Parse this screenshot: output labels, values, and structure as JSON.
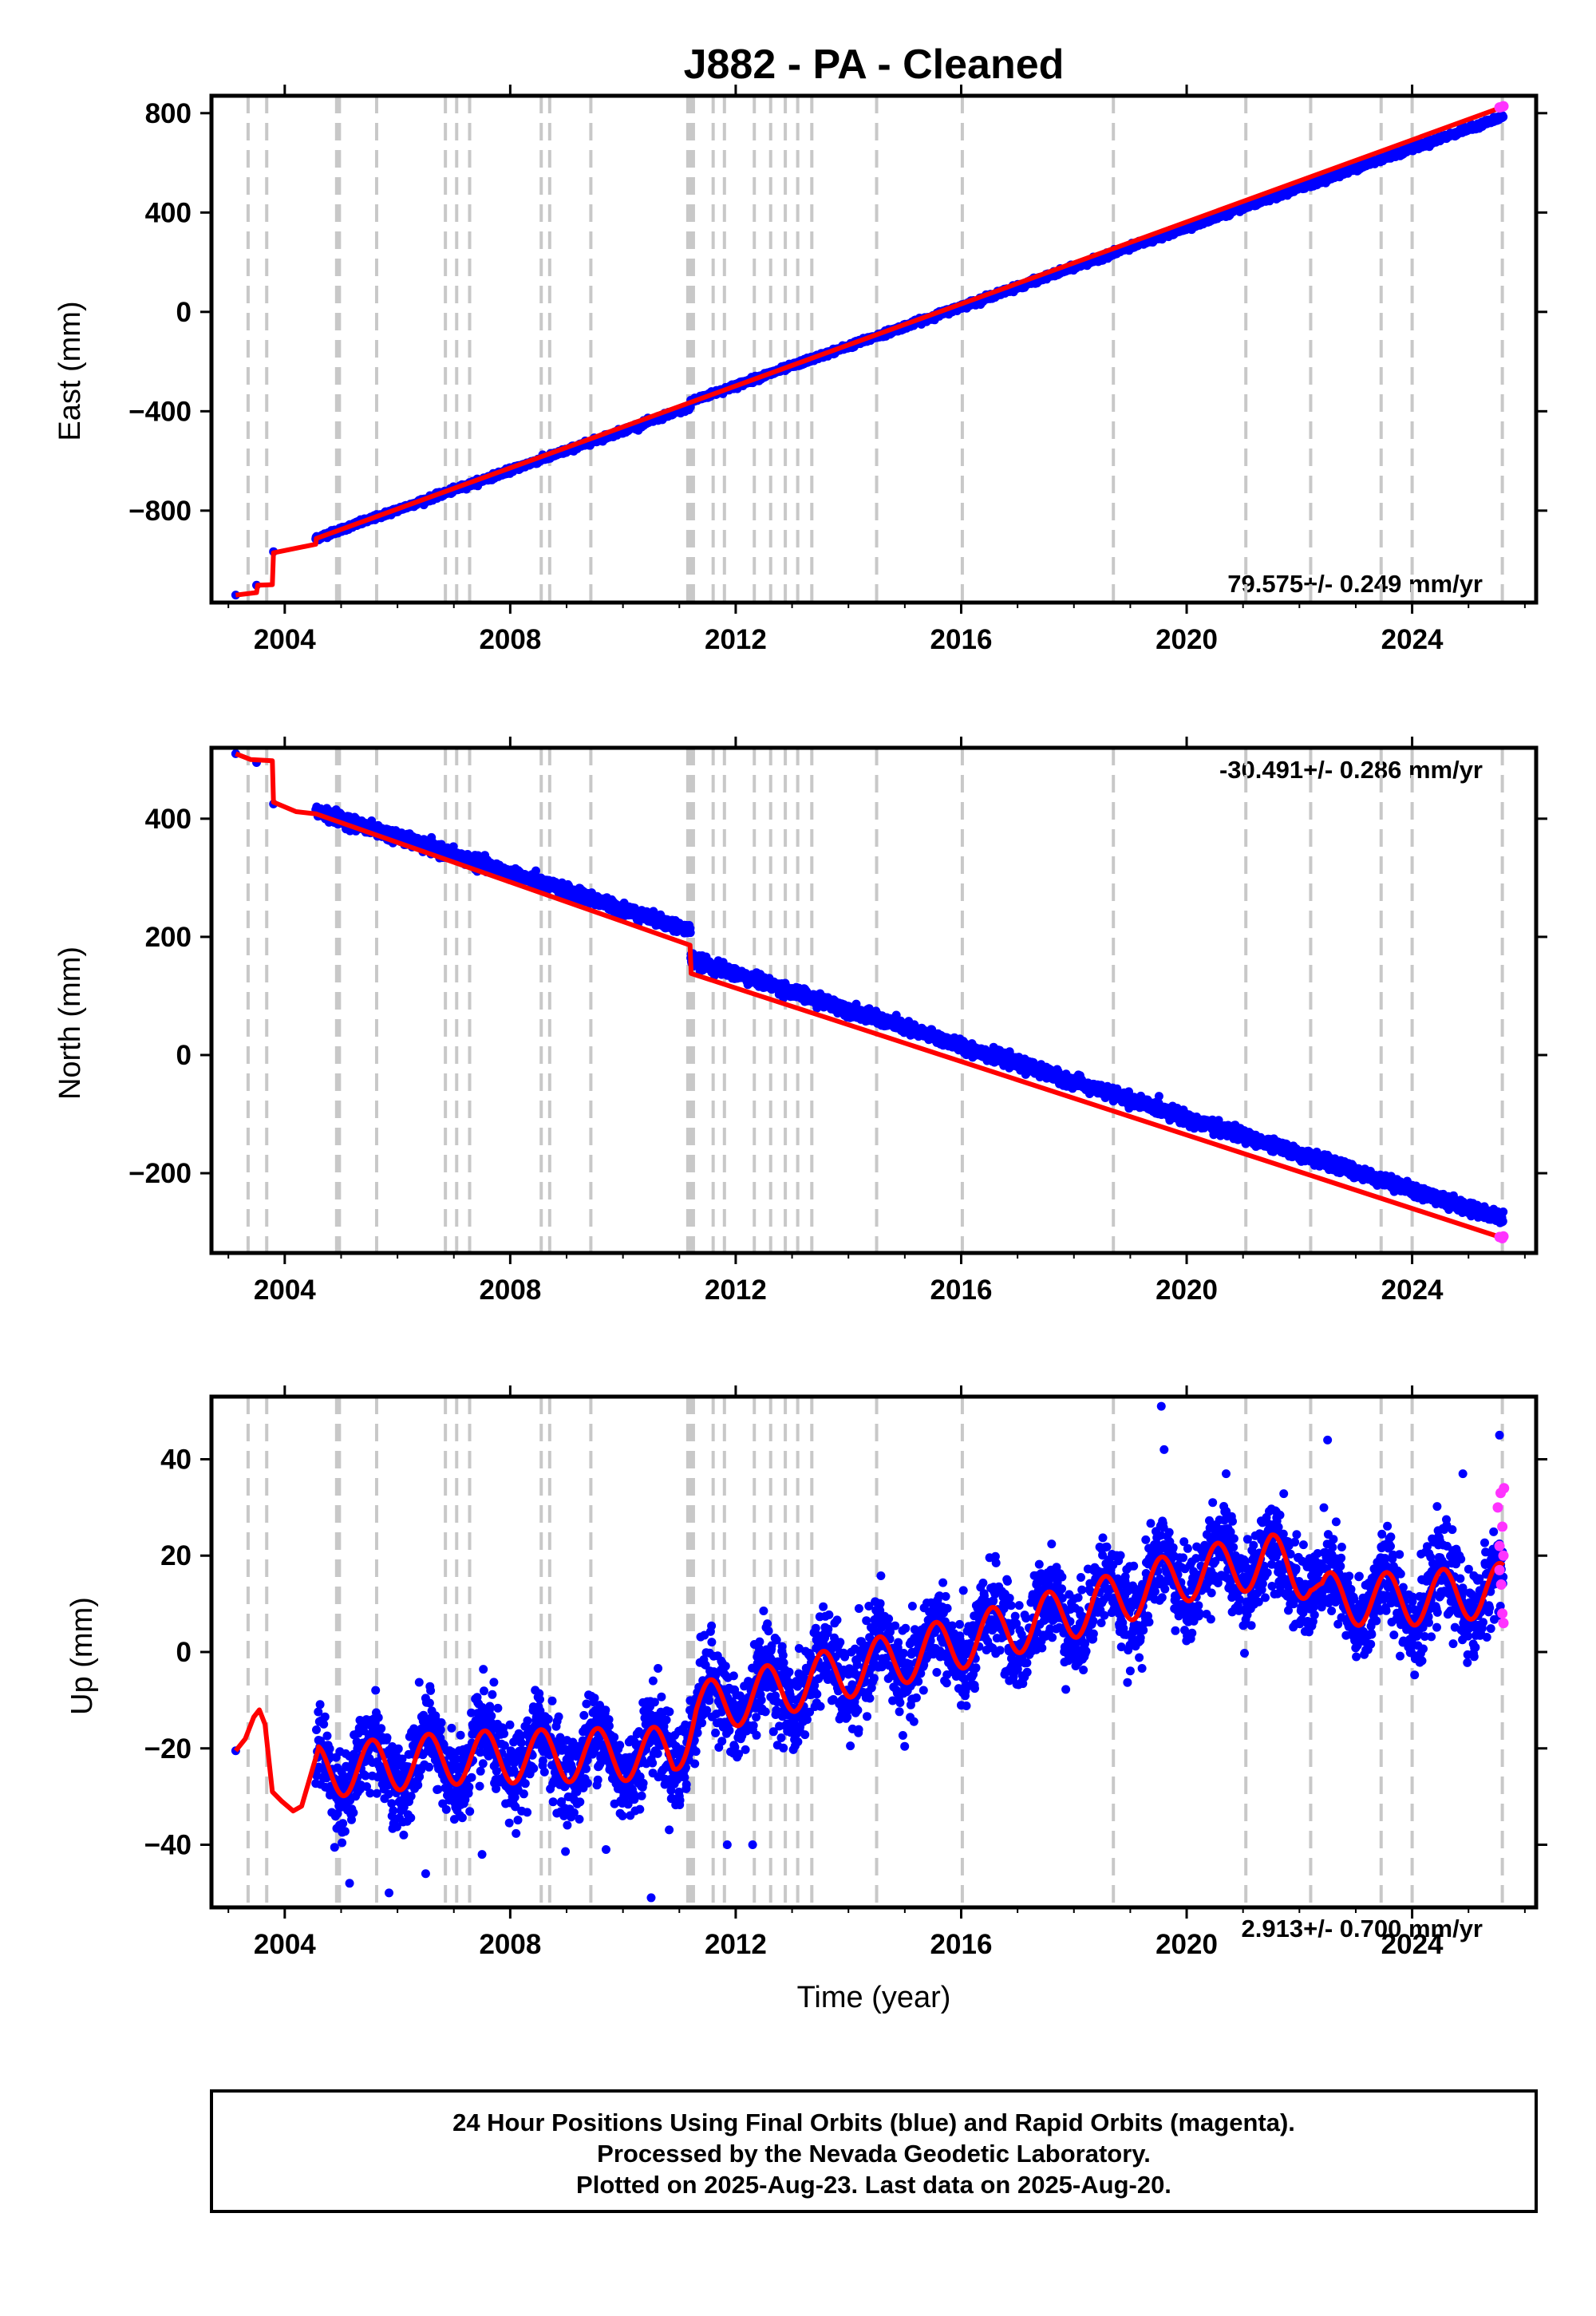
{
  "title": "J882  - PA - Cleaned",
  "colors": {
    "final_points": "#0000ff",
    "rapid_points": "#ff33ff",
    "model_line": "#ff0000",
    "event_lines": "#c8c8c8",
    "frame": "#000000"
  },
  "chart_data": [
    {
      "type": "scatter",
      "component": "east",
      "ylabel": "East (mm)",
      "xlabel": "",
      "xlim": [
        2002.7,
        2026.2
      ],
      "ylim": [
        -1170,
        870
      ],
      "xticks": [
        2004,
        2008,
        2012,
        2016,
        2020,
        2024
      ],
      "yticks": [
        -800,
        -400,
        0,
        400,
        800
      ],
      "rate_label": "79.575+/- 0.249 mm/yr",
      "rate_position": "bottom-right",
      "grid": false,
      "events": [
        2003.35,
        2003.68,
        2004.92,
        2004.97,
        2005.63,
        2006.85,
        2007.05,
        2007.28,
        2008.55,
        2008.7,
        2009.43,
        2011.15,
        2011.2,
        2011.25,
        2011.6,
        2011.8,
        2012.33,
        2012.62,
        2012.88,
        2013.1,
        2013.35,
        2014.5,
        2016.02,
        2018.7,
        2021.05,
        2022.2,
        2023.45,
        2024.0,
        2025.6
      ],
      "early_points": [
        [
          2003.13,
          -1140
        ],
        [
          2003.5,
          -1100
        ],
        [
          2003.8,
          -965
        ]
      ],
      "continuous_start": 2004.55,
      "continuous_end": 2025.62,
      "start_value": -912,
      "end_value": 826,
      "rate": 79.575,
      "steps": [
        [
          2011.2,
          22
        ]
      ],
      "noise": 5,
      "model_line": [
        [
          2003.13,
          -1140
        ],
        [
          2003.5,
          -1130
        ],
        [
          2003.52,
          -1100
        ],
        [
          2003.78,
          -1098
        ],
        [
          2003.8,
          -970
        ],
        [
          2004.55,
          -935
        ],
        [
          2004.56,
          -912
        ],
        [
          2025.62,
          826
        ]
      ],
      "rapid_points": [
        [
          2025.55,
          823
        ],
        [
          2025.6,
          826
        ],
        [
          2025.62,
          828
        ]
      ]
    },
    {
      "type": "scatter",
      "component": "north",
      "ylabel": "North (mm)",
      "xlabel": "",
      "xlim": [
        2002.7,
        2026.2
      ],
      "ylim": [
        -335,
        520
      ],
      "xticks": [
        2004,
        2008,
        2012,
        2016,
        2020,
        2024
      ],
      "yticks": [
        -200,
        0,
        200,
        400
      ],
      "rate_label": "-30.491+/- 0.286 mm/yr",
      "rate_position": "top-right",
      "grid": false,
      "events": [
        2003.35,
        2003.68,
        2004.92,
        2004.97,
        2005.63,
        2006.85,
        2007.05,
        2007.28,
        2008.55,
        2008.7,
        2009.43,
        2011.15,
        2011.2,
        2011.25,
        2011.6,
        2011.8,
        2012.33,
        2012.62,
        2012.88,
        2013.1,
        2013.35,
        2014.5,
        2016.02,
        2018.7,
        2021.05,
        2022.2,
        2023.45,
        2024.0,
        2025.6
      ],
      "early_points": [
        [
          2003.13,
          510
        ],
        [
          2003.5,
          495
        ],
        [
          2003.8,
          425
        ]
      ],
      "continuous_start": 2004.55,
      "continuous_end": 2025.62,
      "start_value": 413,
      "end_value": -313,
      "rate": -30.491,
      "steps": [
        [
          2011.2,
          -48
        ]
      ],
      "noise": 5,
      "model_line": [
        [
          2003.13,
          510
        ],
        [
          2003.4,
          500
        ],
        [
          2003.78,
          498
        ],
        [
          2003.8,
          428
        ],
        [
          2004.2,
          412
        ],
        [
          2004.56,
          408
        ],
        [
          2011.19,
          186
        ],
        [
          2011.21,
          138
        ],
        [
          2025.62,
          -310
        ]
      ],
      "rapid_points": [
        [
          2025.55,
          -308
        ],
        [
          2025.6,
          -310
        ],
        [
          2025.62,
          -307
        ]
      ]
    },
    {
      "type": "scatter",
      "component": "up",
      "ylabel": "Up (mm)",
      "xlabel": "Time (year)",
      "xlim": [
        2002.7,
        2026.2
      ],
      "ylim": [
        -53,
        53
      ],
      "xticks": [
        2004,
        2008,
        2012,
        2016,
        2020,
        2024
      ],
      "yticks": [
        -40,
        -20,
        0,
        20,
        40
      ],
      "rate_label": "2.913+/- 0.700 mm/yr",
      "rate_position": "bottom-right",
      "grid": false,
      "events": [
        2003.35,
        2003.68,
        2004.92,
        2004.97,
        2005.63,
        2006.85,
        2007.05,
        2007.28,
        2008.55,
        2008.7,
        2009.43,
        2011.15,
        2011.2,
        2011.25,
        2011.6,
        2011.8,
        2012.33,
        2012.62,
        2012.88,
        2013.1,
        2013.35,
        2014.5,
        2016.02,
        2018.7,
        2021.05,
        2022.2,
        2023.45,
        2024.0,
        2025.6
      ],
      "early_points": [
        [
          2003.13,
          -20.5
        ]
      ],
      "continuous_start": 2004.55,
      "continuous_end": 2025.62,
      "noise": 4.5,
      "trend_knots": [
        [
          2004.5,
          -25
        ],
        [
          2007.0,
          -22
        ],
        [
          2010.9,
          -21
        ],
        [
          2011.3,
          -12
        ],
        [
          2013.0,
          -7
        ],
        [
          2016.0,
          2
        ],
        [
          2018.5,
          10
        ],
        [
          2020.0,
          16
        ],
        [
          2021.5,
          19
        ],
        [
          2022.2,
          16
        ],
        [
          2022.4,
          11
        ],
        [
          2024.0,
          11
        ],
        [
          2025.62,
          13
        ]
      ],
      "seasonal_amplitude": 5.5,
      "seasonal_peak_phase": 0.55,
      "outliers": [
        [
          2019.55,
          51
        ],
        [
          2010.5,
          -51
        ],
        [
          2005.15,
          -48
        ],
        [
          2005.85,
          -50
        ],
        [
          2011.85,
          -40
        ],
        [
          2012.3,
          -40
        ],
        [
          2006.5,
          -46
        ],
        [
          2019.6,
          42
        ],
        [
          2022.5,
          44
        ],
        [
          2025.55,
          45
        ],
        [
          2007.5,
          -42
        ],
        [
          2009.7,
          -41
        ],
        [
          2020.7,
          37
        ],
        [
          2024.9,
          37
        ]
      ],
      "model_line": [
        [
          2003.13,
          -20.5
        ],
        [
          2003.3,
          -18
        ],
        [
          2003.45,
          -13.5
        ],
        [
          2003.55,
          -12
        ],
        [
          2003.65,
          -15
        ],
        [
          2003.78,
          -29
        ],
        [
          2003.95,
          -31
        ],
        [
          2004.15,
          -33
        ],
        [
          2004.3,
          -32
        ],
        [
          2004.5,
          -24
        ],
        [
          2004.6,
          -20
        ]
      ],
      "rapid_points": [
        [
          2025.52,
          30
        ],
        [
          2025.55,
          22
        ],
        [
          2025.57,
          33
        ],
        [
          2025.58,
          14
        ],
        [
          2025.6,
          26
        ],
        [
          2025.6,
          8
        ],
        [
          2025.62,
          20
        ],
        [
          2025.62,
          6
        ],
        [
          2025.63,
          34
        ],
        [
          2025.55,
          17
        ]
      ]
    }
  ],
  "footer": {
    "line1": "24 Hour Positions Using Final Orbits (blue) and Rapid Orbits (magenta).",
    "line2": "Processed by the Nevada Geodetic Laboratory.",
    "line3": "Plotted on 2025-Aug-23. Last data on 2025-Aug-20."
  }
}
